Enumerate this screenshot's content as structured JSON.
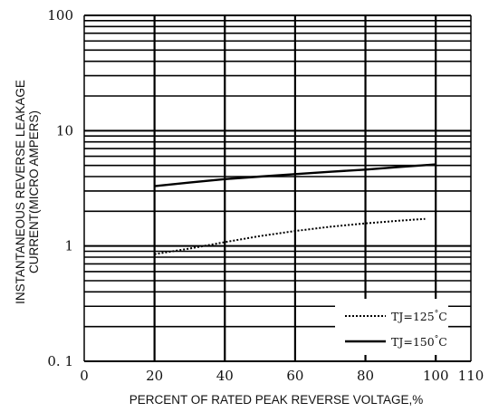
{
  "chart_data": {
    "type": "line",
    "title": "",
    "xlabel": "PERCENT OF RATED PEAK REVERSE VOLTAGE,%",
    "ylabel_line1": "INSTANTANEOUS REVERSE LEAKAGE",
    "ylabel_line2": "CURRENT(MICRO AMPERS)",
    "xlim": [
      0,
      110
    ],
    "ylim": [
      0.1,
      100
    ],
    "yscale": "log",
    "grid": true,
    "x_ticks": [
      {
        "value": 0,
        "label": "0"
      },
      {
        "value": 20,
        "label": "20"
      },
      {
        "value": 40,
        "label": "40"
      },
      {
        "value": 60,
        "label": "60"
      },
      {
        "value": 80,
        "label": "80"
      },
      {
        "value": 100,
        "label": "100"
      },
      {
        "value": 110,
        "label": "110"
      }
    ],
    "y_ticks": [
      {
        "value": 100,
        "label": "100"
      },
      {
        "value": 10,
        "label": "10"
      },
      {
        "value": 1,
        "label": "1"
      },
      {
        "value": 0.1,
        "label": "0. 1"
      }
    ],
    "legend_position": "bottom-right",
    "series": [
      {
        "name": "TJ=125°C",
        "label_main": "TJ=125",
        "label_sup": "°",
        "label_end": "C",
        "style": "dotted",
        "x": [
          20,
          30,
          40,
          50,
          60,
          70,
          80,
          90,
          97
        ],
        "values": [
          0.85,
          0.95,
          1.08,
          1.22,
          1.35,
          1.47,
          1.57,
          1.66,
          1.72
        ]
      },
      {
        "name": "TJ=150°C",
        "label_main": "TJ=150",
        "label_sup": "°",
        "label_end": "C",
        "style": "solid",
        "x": [
          20,
          30,
          40,
          50,
          60,
          70,
          80,
          90,
          100
        ],
        "values": [
          3.3,
          3.55,
          3.8,
          4.0,
          4.2,
          4.4,
          4.6,
          4.85,
          5.1
        ]
      }
    ]
  }
}
